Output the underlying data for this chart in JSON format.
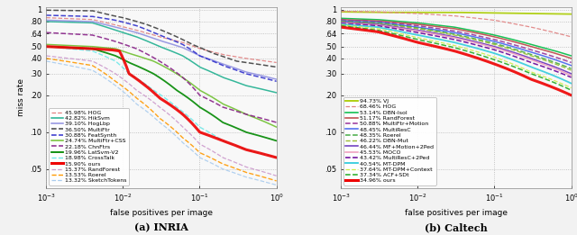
{
  "fig_width": 6.4,
  "fig_height": 2.61,
  "dpi": 100,
  "background_color": "#f2f2f2",
  "plot_bg_color": "#f8f8f8",
  "inria_legend": [
    {
      "label": "45.98% HOG",
      "color": "#e08080",
      "ls": "--",
      "lw": 0.9
    },
    {
      "label": "42.82% HikSvm",
      "color": "#20b090",
      "ls": "-",
      "lw": 1.1
    },
    {
      "label": "39.10% HogLbp",
      "color": "#9090e0",
      "ls": "-",
      "lw": 1.1
    },
    {
      "label": "36.50% MultiFtr",
      "color": "#404040",
      "ls": "--",
      "lw": 1.1
    },
    {
      "label": "30.88% FeatSynth",
      "color": "#3030cc",
      "ls": "--",
      "lw": 1.1
    },
    {
      "label": "24.74% MultiFtr+CSS",
      "color": "#70c030",
      "ls": "-",
      "lw": 1.1
    },
    {
      "label": "22.18% ChnFtrs",
      "color": "#882288",
      "ls": "--",
      "lw": 1.1
    },
    {
      "label": "19.96% LatSvm-V2",
      "color": "#008800",
      "ls": "-",
      "lw": 1.3
    },
    {
      "label": "18.98% CrossTalk",
      "color": "#70e8e8",
      "ls": "--",
      "lw": 1.0
    },
    {
      "label": "15.90% ours",
      "color": "#ee0000",
      "ls": "-",
      "lw": 2.2
    },
    {
      "label": "15.37% RandForest",
      "color": "#cc99cc",
      "ls": "--",
      "lw": 0.9
    },
    {
      "label": "13.53% Roerel",
      "color": "#ff9900",
      "ls": "--",
      "lw": 1.0
    },
    {
      "label": "13.32% SketchTokens",
      "color": "#aaccee",
      "ls": "--",
      "lw": 0.9
    }
  ],
  "caltech_legend": [
    {
      "label": "94.73% VJ",
      "color": "#aacc00",
      "ls": "-",
      "lw": 1.3
    },
    {
      "label": "68.46% HOG",
      "color": "#e08080",
      "ls": "--",
      "lw": 0.9
    },
    {
      "label": "53.14% DBN-Isol",
      "color": "#00bb44",
      "ls": "-",
      "lw": 1.1
    },
    {
      "label": "51.17% RandForest",
      "color": "#bb4444",
      "ls": "-",
      "lw": 1.1
    },
    {
      "label": "50.88% MultiFtr+Motion",
      "color": "#993399",
      "ls": "--",
      "lw": 1.1
    },
    {
      "label": "48.45% MultiResC",
      "color": "#4466ee",
      "ls": "-",
      "lw": 1.1
    },
    {
      "label": "48.35% Roerel",
      "color": "#44aa44",
      "ls": "--",
      "lw": 1.1
    },
    {
      "label": "46.22% DBN-Mut",
      "color": "#99bb33",
      "ls": "--",
      "lw": 1.0
    },
    {
      "label": "46.44% MF+Motion+2Ped",
      "color": "#6633bb",
      "ls": "-",
      "lw": 1.1
    },
    {
      "label": "45.53% MOCO",
      "color": "#ee99bb",
      "ls": "-",
      "lw": 1.1
    },
    {
      "label": "43.42% MultiResC+2Ped",
      "color": "#660099",
      "ls": "--",
      "lw": 1.1
    },
    {
      "label": "40.54% MT-DPM",
      "color": "#33ccdd",
      "ls": "-",
      "lw": 1.3
    },
    {
      "label": "37.64% MT-DPM+Context",
      "color": "#ccee44",
      "ls": "--",
      "lw": 0.9
    },
    {
      "label": "37.34% ACF+SDt",
      "color": "#22aa22",
      "ls": "--",
      "lw": 1.1
    },
    {
      "label": "34.96% ours",
      "color": "#ee0000",
      "ls": "-",
      "lw": 2.2
    }
  ],
  "xlim": [
    0.001,
    1.0
  ],
  "ylim_min": 0.035,
  "ylim_max": 1.05,
  "yticks": [
    0.05,
    0.1,
    0.2,
    0.3,
    0.4,
    0.5,
    0.64,
    0.8,
    1.0
  ],
  "ytick_labels": [
    ".05",
    ".10",
    ".20",
    ".30",
    ".40",
    ".50",
    ".64",
    ".80",
    "1"
  ],
  "xlabel": "false positives per image",
  "ylabel": "miss rate",
  "subtitle_a": "(a) INRIA",
  "subtitle_b": "(b) Caltech",
  "tick_fontsize": 6.0,
  "axis_label_fontsize": 6.5,
  "subtitle_fontsize": 8.0,
  "legend_fontsize": 4.5
}
